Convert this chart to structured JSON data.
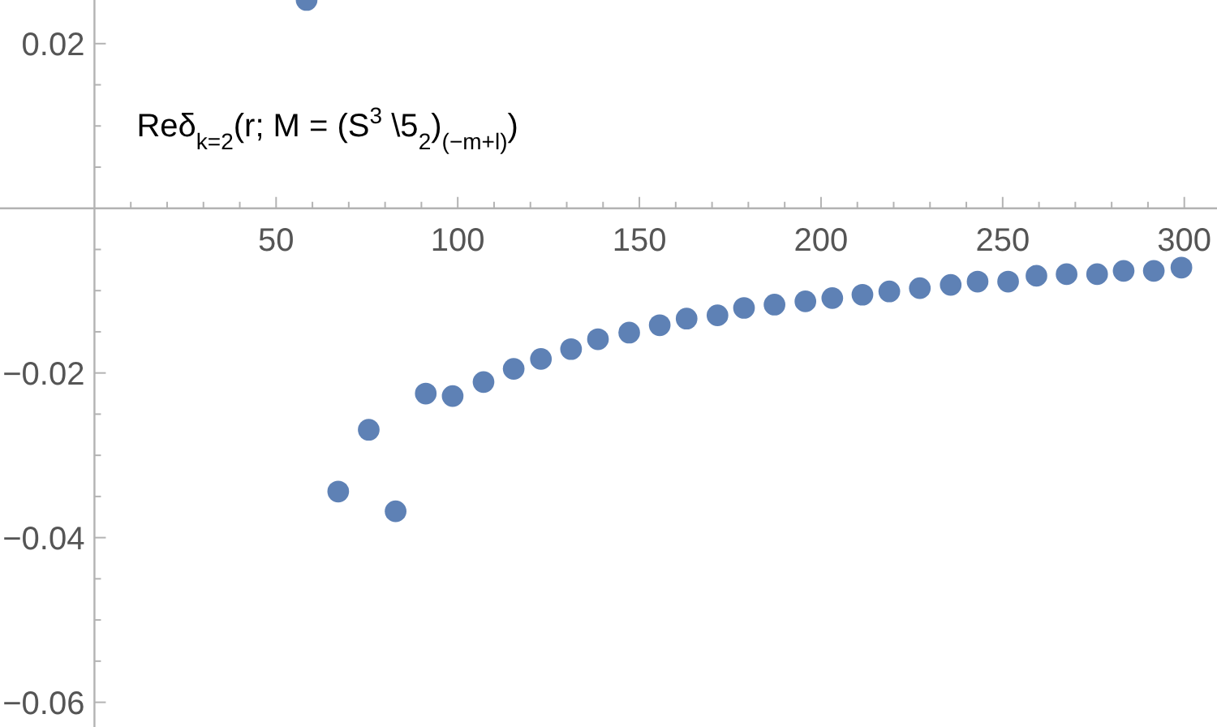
{
  "chart_data": {
    "type": "scatter",
    "marker": "circle",
    "grid": false,
    "annotations": [
      "Reδ$_{k=2}$(r; M = (S$^{3}$ \\5$_{2}$)$_{(−m+l)}$)"
    ],
    "x": [
      58.4,
      67.1,
      75.5,
      82.9,
      91.2,
      98.6,
      107.1,
      115.4,
      122.9,
      131.2,
      138.6,
      147.2,
      155.6,
      163.0,
      171.5,
      178.8,
      187.2,
      195.7,
      203.1,
      211.4,
      218.8,
      227.2,
      235.7,
      243.1,
      251.5,
      259.3,
      267.6,
      276.0,
      283.3,
      291.6,
      299.2
    ],
    "series": [
      {
        "color": "#5e81b5",
        "values": [
          0.0253,
          -0.0344,
          -0.0269,
          -0.0368,
          -0.0225,
          -0.0228,
          -0.0211,
          -0.0195,
          -0.0183,
          -0.0171,
          -0.0159,
          -0.0151,
          -0.0142,
          -0.0134,
          -0.013,
          -0.0121,
          -0.0117,
          -0.0113,
          -0.0109,
          -0.0105,
          -0.0101,
          -0.0097,
          -0.0093,
          -0.0089,
          -0.0089,
          -0.0082,
          -0.008,
          -0.008,
          -0.0076,
          -0.0076,
          -0.0072
        ]
      }
    ],
    "xlim": [
      -26,
      309
    ],
    "ylim": [
      -0.063,
      0.0253
    ],
    "xticks": [
      {
        "value": 10,
        "label": null
      },
      {
        "value": 20,
        "label": null
      },
      {
        "value": 30,
        "label": null
      },
      {
        "value": 40,
        "label": null
      },
      50,
      {
        "value": 60,
        "label": null
      },
      {
        "value": 70,
        "label": null
      },
      {
        "value": 80,
        "label": null
      },
      {
        "value": 90,
        "label": null
      },
      100,
      {
        "value": 110,
        "label": null
      },
      {
        "value": 120,
        "label": null
      },
      {
        "value": 130,
        "label": null
      },
      {
        "value": 140,
        "label": null
      },
      150,
      {
        "value": 160,
        "label": null
      },
      {
        "value": 170,
        "label": null
      },
      {
        "value": 180,
        "label": null
      },
      {
        "value": 190,
        "label": null
      },
      200,
      {
        "value": 210,
        "label": null
      },
      {
        "value": 220,
        "label": null
      },
      {
        "value": 230,
        "label": null
      },
      {
        "value": 240,
        "label": null
      },
      250,
      {
        "value": 260,
        "label": null
      },
      {
        "value": 270,
        "label": null
      },
      {
        "value": 280,
        "label": null
      },
      {
        "value": 290,
        "label": null
      },
      300
    ],
    "yticks": [
      {
        "value": -0.06,
        "label": "−0.06"
      },
      {
        "value": -0.055,
        "label": null
      },
      {
        "value": -0.05,
        "label": null
      },
      {
        "value": -0.045,
        "label": null
      },
      {
        "value": -0.04,
        "label": "−0.04"
      },
      {
        "value": -0.035,
        "label": null
      },
      {
        "value": -0.03,
        "label": null
      },
      {
        "value": -0.025,
        "label": null
      },
      {
        "value": -0.02,
        "label": "−0.02"
      },
      {
        "value": -0.015,
        "label": null
      },
      {
        "value": -0.01,
        "label": null
      },
      {
        "value": -0.005,
        "label": null
      },
      {
        "value": 0.005,
        "label": null
      },
      {
        "value": 0.01,
        "label": null
      },
      {
        "value": 0.015,
        "label": null
      },
      {
        "value": 0.02,
        "label": "0.02"
      }
    ]
  }
}
